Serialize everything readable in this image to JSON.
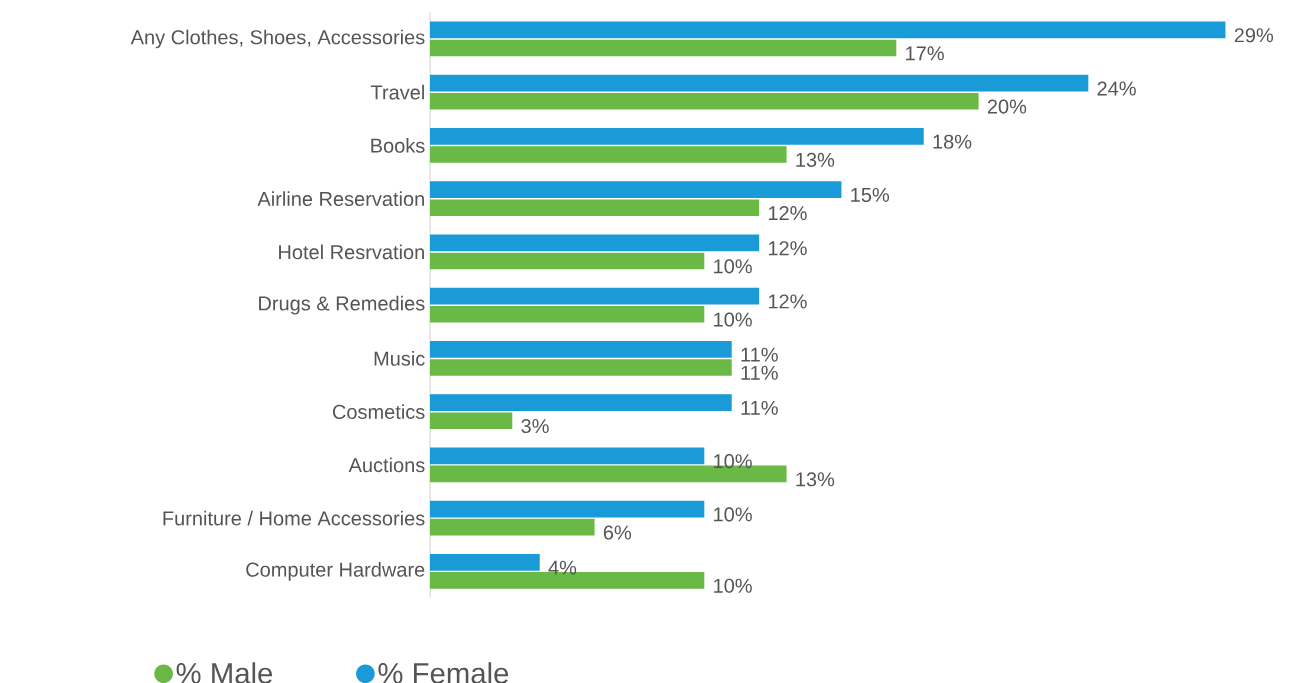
{
  "chart_data": {
    "type": "bar",
    "orientation": "horizontal",
    "categories": [
      "Any Clothes, Shoes, Accessories",
      "Travel",
      "Books",
      "Airline Reservation",
      "Hotel Resrvation",
      "Drugs & Remedies",
      "Music",
      "Cosmetics",
      "Auctions",
      "Furniture / Home Accessories",
      "Computer Hardware"
    ],
    "series": [
      {
        "name": "% Male",
        "color": "#6ab946",
        "values": [
          17,
          20,
          13,
          12,
          10,
          10,
          11,
          3,
          13,
          6,
          10
        ],
        "value_labels": [
          "17%",
          "20%",
          "13%",
          "12%",
          "10%",
          "10%",
          "11%",
          "3%",
          "13%",
          "6%",
          "10%"
        ]
      },
      {
        "name": "% Female",
        "color": "#1a9ad6",
        "values": [
          29,
          24,
          18,
          15,
          12,
          12,
          11,
          11,
          10,
          10,
          4
        ],
        "value_labels": [
          "29%",
          "24%",
          "18%",
          "15%",
          "12%",
          "12%",
          "11%",
          "11%",
          "10%",
          "10%",
          "4%"
        ]
      }
    ],
    "legend": "bottom left",
    "tick_labels": "y"
  }
}
